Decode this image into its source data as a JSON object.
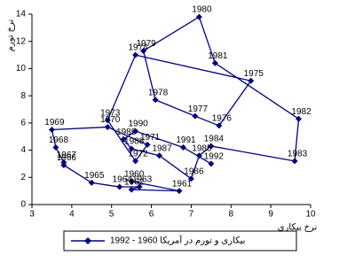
{
  "chart_data": {
    "type": "scatter",
    "connected": true,
    "x_label": "نرخ بیکاری",
    "y_label": "نرخ تورم",
    "xlim": [
      3,
      10
    ],
    "ylim": [
      0,
      14
    ],
    "xticks": [
      3,
      4,
      5,
      6,
      7,
      8,
      9,
      10
    ],
    "yticks": [
      0,
      2,
      4,
      6,
      8,
      10,
      12,
      14
    ],
    "series": [
      {
        "name": "بیکاری و تورم در آمریکا 1960 - 1992",
        "color": "#000080",
        "labels": [
          "1960",
          "1961",
          "1962",
          "1963",
          "1964",
          "1965",
          "1966",
          "1967",
          "1968",
          "1969",
          "1970",
          "1971",
          "1972",
          "1973",
          "1974",
          "1975",
          "1976",
          "1977",
          "1978",
          "1979",
          "1980",
          "1981",
          "1982",
          "1983",
          "1984",
          "1985",
          "1986",
          "1987",
          "1988",
          "1989",
          "1990",
          "1991",
          "1992"
        ],
        "x": [
          5.5,
          6.7,
          5.5,
          5.7,
          5.2,
          4.5,
          3.8,
          3.8,
          3.6,
          3.5,
          4.9,
          5.9,
          5.6,
          4.9,
          5.6,
          8.5,
          7.7,
          7.1,
          6.1,
          5.8,
          7.2,
          7.6,
          9.7,
          9.6,
          7.5,
          7.2,
          7.0,
          6.2,
          5.5,
          5.3,
          5.6,
          6.8,
          7.5
        ],
        "values": [
          1.7,
          1.0,
          1.1,
          1.3,
          1.3,
          1.6,
          2.9,
          3.1,
          4.2,
          5.5,
          5.7,
          4.4,
          3.2,
          6.2,
          11.0,
          9.1,
          5.8,
          6.5,
          7.7,
          11.3,
          13.8,
          10.4,
          6.3,
          3.2,
          4.3,
          3.6,
          1.9,
          3.6,
          4.1,
          4.8,
          5.4,
          4.2,
          3.0
        ]
      }
    ]
  }
}
